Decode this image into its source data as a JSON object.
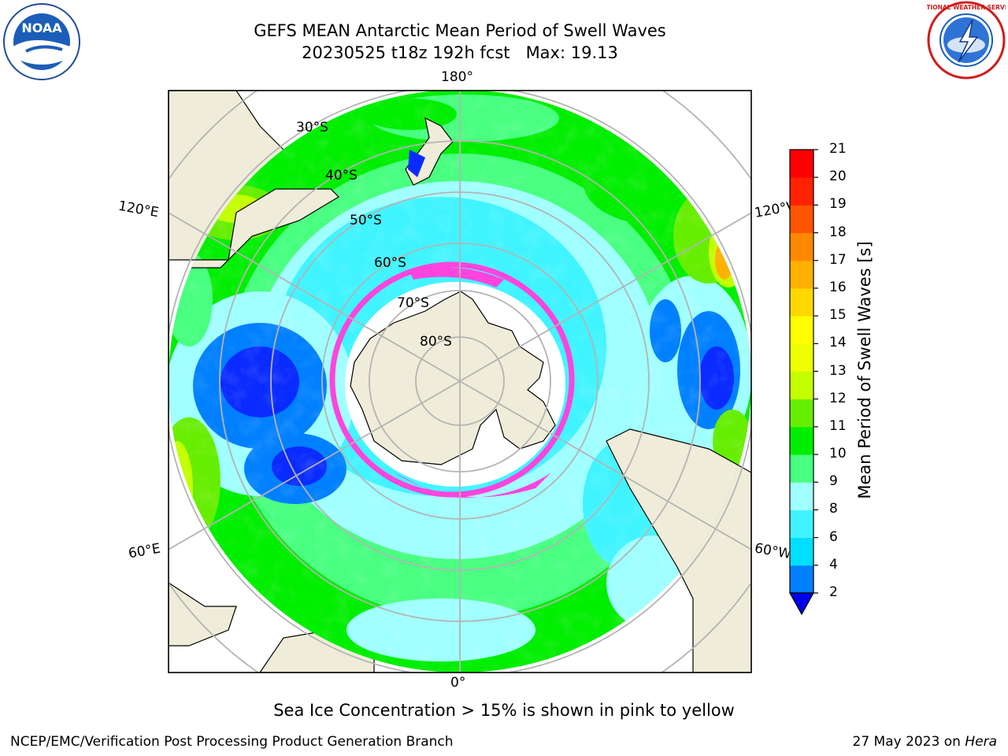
{
  "title_line1": "GEFS MEAN Antarctic Mean Period of Swell Waves",
  "title_line2": "20230525 t18z 192h fcst   Max: 19.13",
  "map": {
    "lon_labels": {
      "top": "180°",
      "bottom": "0°",
      "upper_left": "120°E",
      "upper_right": "120°W",
      "lower_left": "60°E",
      "lower_right": "60°W"
    },
    "lat_labels": [
      "30°S",
      "40°S",
      "50°S",
      "60°S",
      "70°S",
      "80°S"
    ],
    "colors": {
      "land": "#efedd9",
      "ice_edge": "#ff44dd",
      "grid": "#b4b4b4"
    }
  },
  "colorbar": {
    "label": "Mean Period of Swell Waves [s]",
    "ticks": [
      "2",
      "4",
      "6",
      "8",
      "9",
      "10",
      "11",
      "12",
      "13",
      "14",
      "15",
      "16",
      "17",
      "18",
      "19",
      "20",
      "21"
    ],
    "colors": [
      "#0a2bff",
      "#0080ff",
      "#00dfff",
      "#40f4ff",
      "#a0ffff",
      "#48ff80",
      "#00ee00",
      "#66ee00",
      "#c4ff00",
      "#eeff00",
      "#ffff00",
      "#ffd800",
      "#ffb000",
      "#ff8800",
      "#ff5500",
      "#ff2200",
      "#ff0000"
    ],
    "underflow_color": "#0000ee"
  },
  "note": "Sea Ice Concentration > 15% is shown in pink to yellow",
  "credit": "NCEP/EMC/Verification Post Processing Product Generation Branch",
  "date_text": "27 May 2023 on ",
  "date_host": "Hera",
  "logos": {
    "left": {
      "text": "NOAA",
      "icon": "noaa-logo"
    },
    "right": {
      "text": "NATIONAL WEATHER SERVICE",
      "icon": "nws-logo"
    }
  }
}
